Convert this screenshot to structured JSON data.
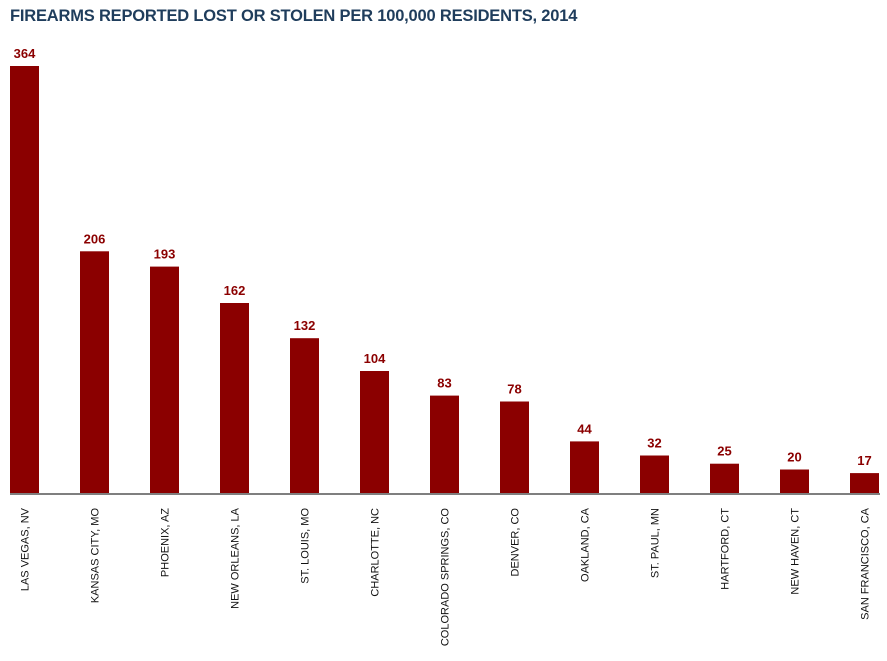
{
  "chart_data": {
    "type": "bar",
    "title": "FIREARMS REPORTED LOST OR STOLEN PER 100,000 RESIDENTS, 2014",
    "xlabel": "",
    "ylabel": "",
    "categories": [
      "LAS VEGAS,  NV",
      "KANSAS CITY, MO",
      "PHOENIX, AZ",
      "NEW ORLEANS, LA",
      "ST. LOUIS, MO",
      "CHARLOTTE, NC",
      "COLORADO SPRINGS, CO",
      "DENVER, CO",
      "OAKLAND, CA",
      "ST. PAUL, MN",
      "HARTFORD,  CT",
      "NEW HAVEN, CT",
      "SAN FRANCISCO, CA"
    ],
    "values": [
      364,
      206,
      193,
      162,
      132,
      104,
      83,
      78,
      44,
      32,
      25,
      20,
      17
    ],
    "ylim": [
      0,
      364
    ],
    "grid": false,
    "bar_color": "#8b0000",
    "label_color": "#8b0000",
    "title_color": "#1f3d5c"
  }
}
